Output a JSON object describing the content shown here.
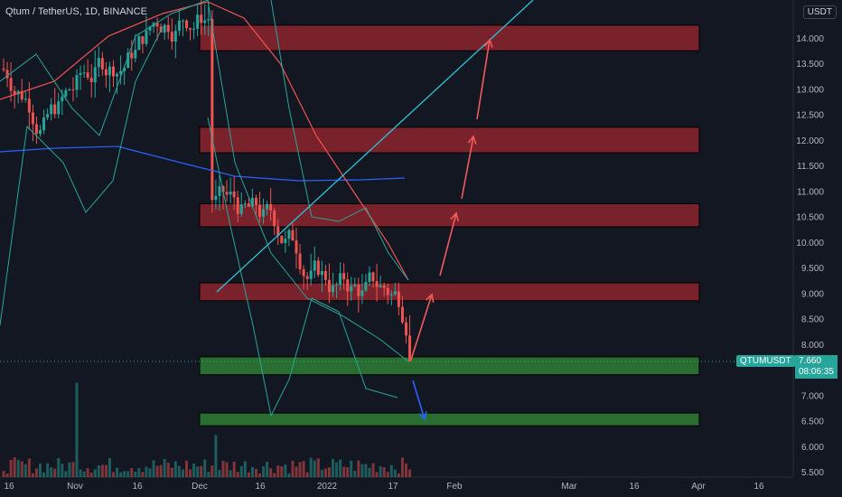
{
  "header": {
    "title": "Qtum / TetherUS, 1D, BINANCE",
    "currency": "USDT"
  },
  "price_tag": {
    "symbol": "QTUMUSDT",
    "price": "7.660",
    "countdown": "08:06:35"
  },
  "colors": {
    "background": "#131722",
    "up": "#26a69a",
    "down": "#ef5350",
    "resistance_zone": "#b22833",
    "support_zone": "#2e7d32",
    "trendline": "#26c6da",
    "projection_arrow": "#f05b5b",
    "down_arrow": "#2962ff"
  },
  "chart_data": {
    "type": "candlestick",
    "y_axis": {
      "ticks": [
        "5.500",
        "6.000",
        "6.500",
        "7.000",
        "7.500",
        "8.000",
        "8.500",
        "9.000",
        "9.500",
        "10.000",
        "10.500",
        "11.000",
        "11.500",
        "12.000",
        "12.500",
        "13.000",
        "13.500",
        "14.000"
      ],
      "range": [
        5.4,
        15.2
      ]
    },
    "x_axis": {
      "labels": [
        "16",
        "Nov",
        "16",
        "Dec",
        "16",
        "2022",
        "17",
        "Feb",
        "Mar",
        "16",
        "Apr",
        "16"
      ]
    },
    "resistance_zones": [
      {
        "low": 13.75,
        "high": 14.25
      },
      {
        "low": 11.75,
        "high": 12.25
      },
      {
        "low": 10.3,
        "high": 10.75
      },
      {
        "low": 8.85,
        "high": 9.2
      }
    ],
    "support_zones": [
      {
        "low": 7.4,
        "high": 7.75
      },
      {
        "low": 6.4,
        "high": 6.65
      }
    ],
    "current_price": 7.66
  }
}
